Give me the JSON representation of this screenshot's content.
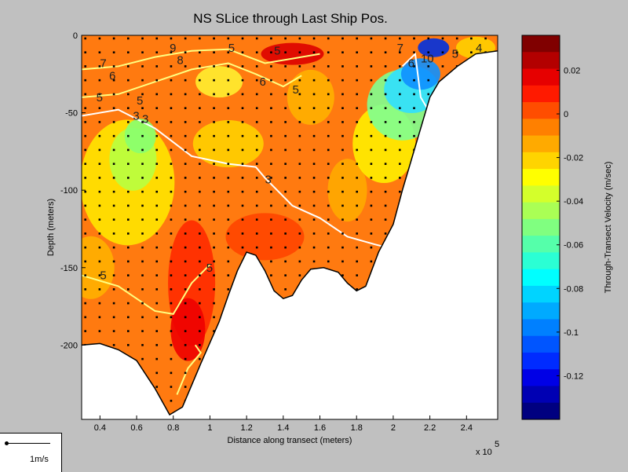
{
  "chart_data": {
    "type": "heatmap",
    "title": "NS SLice through Last Ship Pos.",
    "xlabel": "Distance along transect (meters)",
    "ylabel": "Depth (meters)",
    "x_multiplier": "x 10",
    "x_multiplier_exp": "5",
    "x_ticks": [
      "0.4",
      "0.6",
      "0.8",
      "1",
      "1.2",
      "1.4",
      "1.6",
      "1.8",
      "2",
      "2.2",
      "2.4"
    ],
    "x_tick_values": [
      0.4,
      0.6,
      0.8,
      1.0,
      1.2,
      1.4,
      1.6,
      1.8,
      2.0,
      2.2,
      2.4
    ],
    "y_ticks": [
      "0",
      "-50",
      "-100",
      "-150",
      "-200"
    ],
    "y_tick_values": [
      0,
      -50,
      -100,
      -150,
      -200
    ],
    "xlim": [
      0.3,
      2.57
    ],
    "ylim": [
      -248,
      0
    ],
    "colorbar": {
      "label": "Through-Transect Velocity (m/sec)",
      "range": [
        -0.14,
        0.036
      ],
      "ticks": [
        "0.02",
        "0",
        "-0.02",
        "-0.04",
        "-0.06",
        "-0.08",
        "-0.1",
        "-0.12"
      ],
      "tick_values": [
        0.02,
        0,
        -0.02,
        -0.04,
        -0.06,
        -0.08,
        -0.1,
        -0.12
      ]
    },
    "bottom_profile": [
      [
        0.3,
        -200
      ],
      [
        0.4,
        -199
      ],
      [
        0.5,
        -203
      ],
      [
        0.6,
        -210
      ],
      [
        0.7,
        -228
      ],
      [
        0.78,
        -245
      ],
      [
        0.85,
        -240
      ],
      [
        0.95,
        -212
      ],
      [
        1.05,
        -185
      ],
      [
        1.1,
        -168
      ],
      [
        1.15,
        -152
      ],
      [
        1.2,
        -140
      ],
      [
        1.25,
        -142
      ],
      [
        1.3,
        -152
      ],
      [
        1.35,
        -165
      ],
      [
        1.4,
        -170
      ],
      [
        1.45,
        -168
      ],
      [
        1.5,
        -158
      ],
      [
        1.55,
        -151
      ],
      [
        1.62,
        -150
      ],
      [
        1.7,
        -153
      ],
      [
        1.75,
        -160
      ],
      [
        1.8,
        -165
      ],
      [
        1.85,
        -162
      ],
      [
        1.92,
        -140
      ],
      [
        2.0,
        -122
      ],
      [
        2.05,
        -100
      ],
      [
        2.1,
        -80
      ],
      [
        2.15,
        -60
      ],
      [
        2.2,
        -40
      ],
      [
        2.25,
        -30
      ],
      [
        2.35,
        -20
      ],
      [
        2.45,
        -12
      ],
      [
        2.57,
        -10
      ]
    ],
    "contour_labels": [
      "9",
      "8",
      "7",
      "6",
      "6",
      "5",
      "5",
      "5",
      "5",
      "5",
      "5",
      "5",
      "3",
      "3",
      "3",
      "3",
      "7",
      "6",
      "10",
      "5",
      "4"
    ]
  },
  "scale_legend": {
    "label": "1m/s"
  }
}
